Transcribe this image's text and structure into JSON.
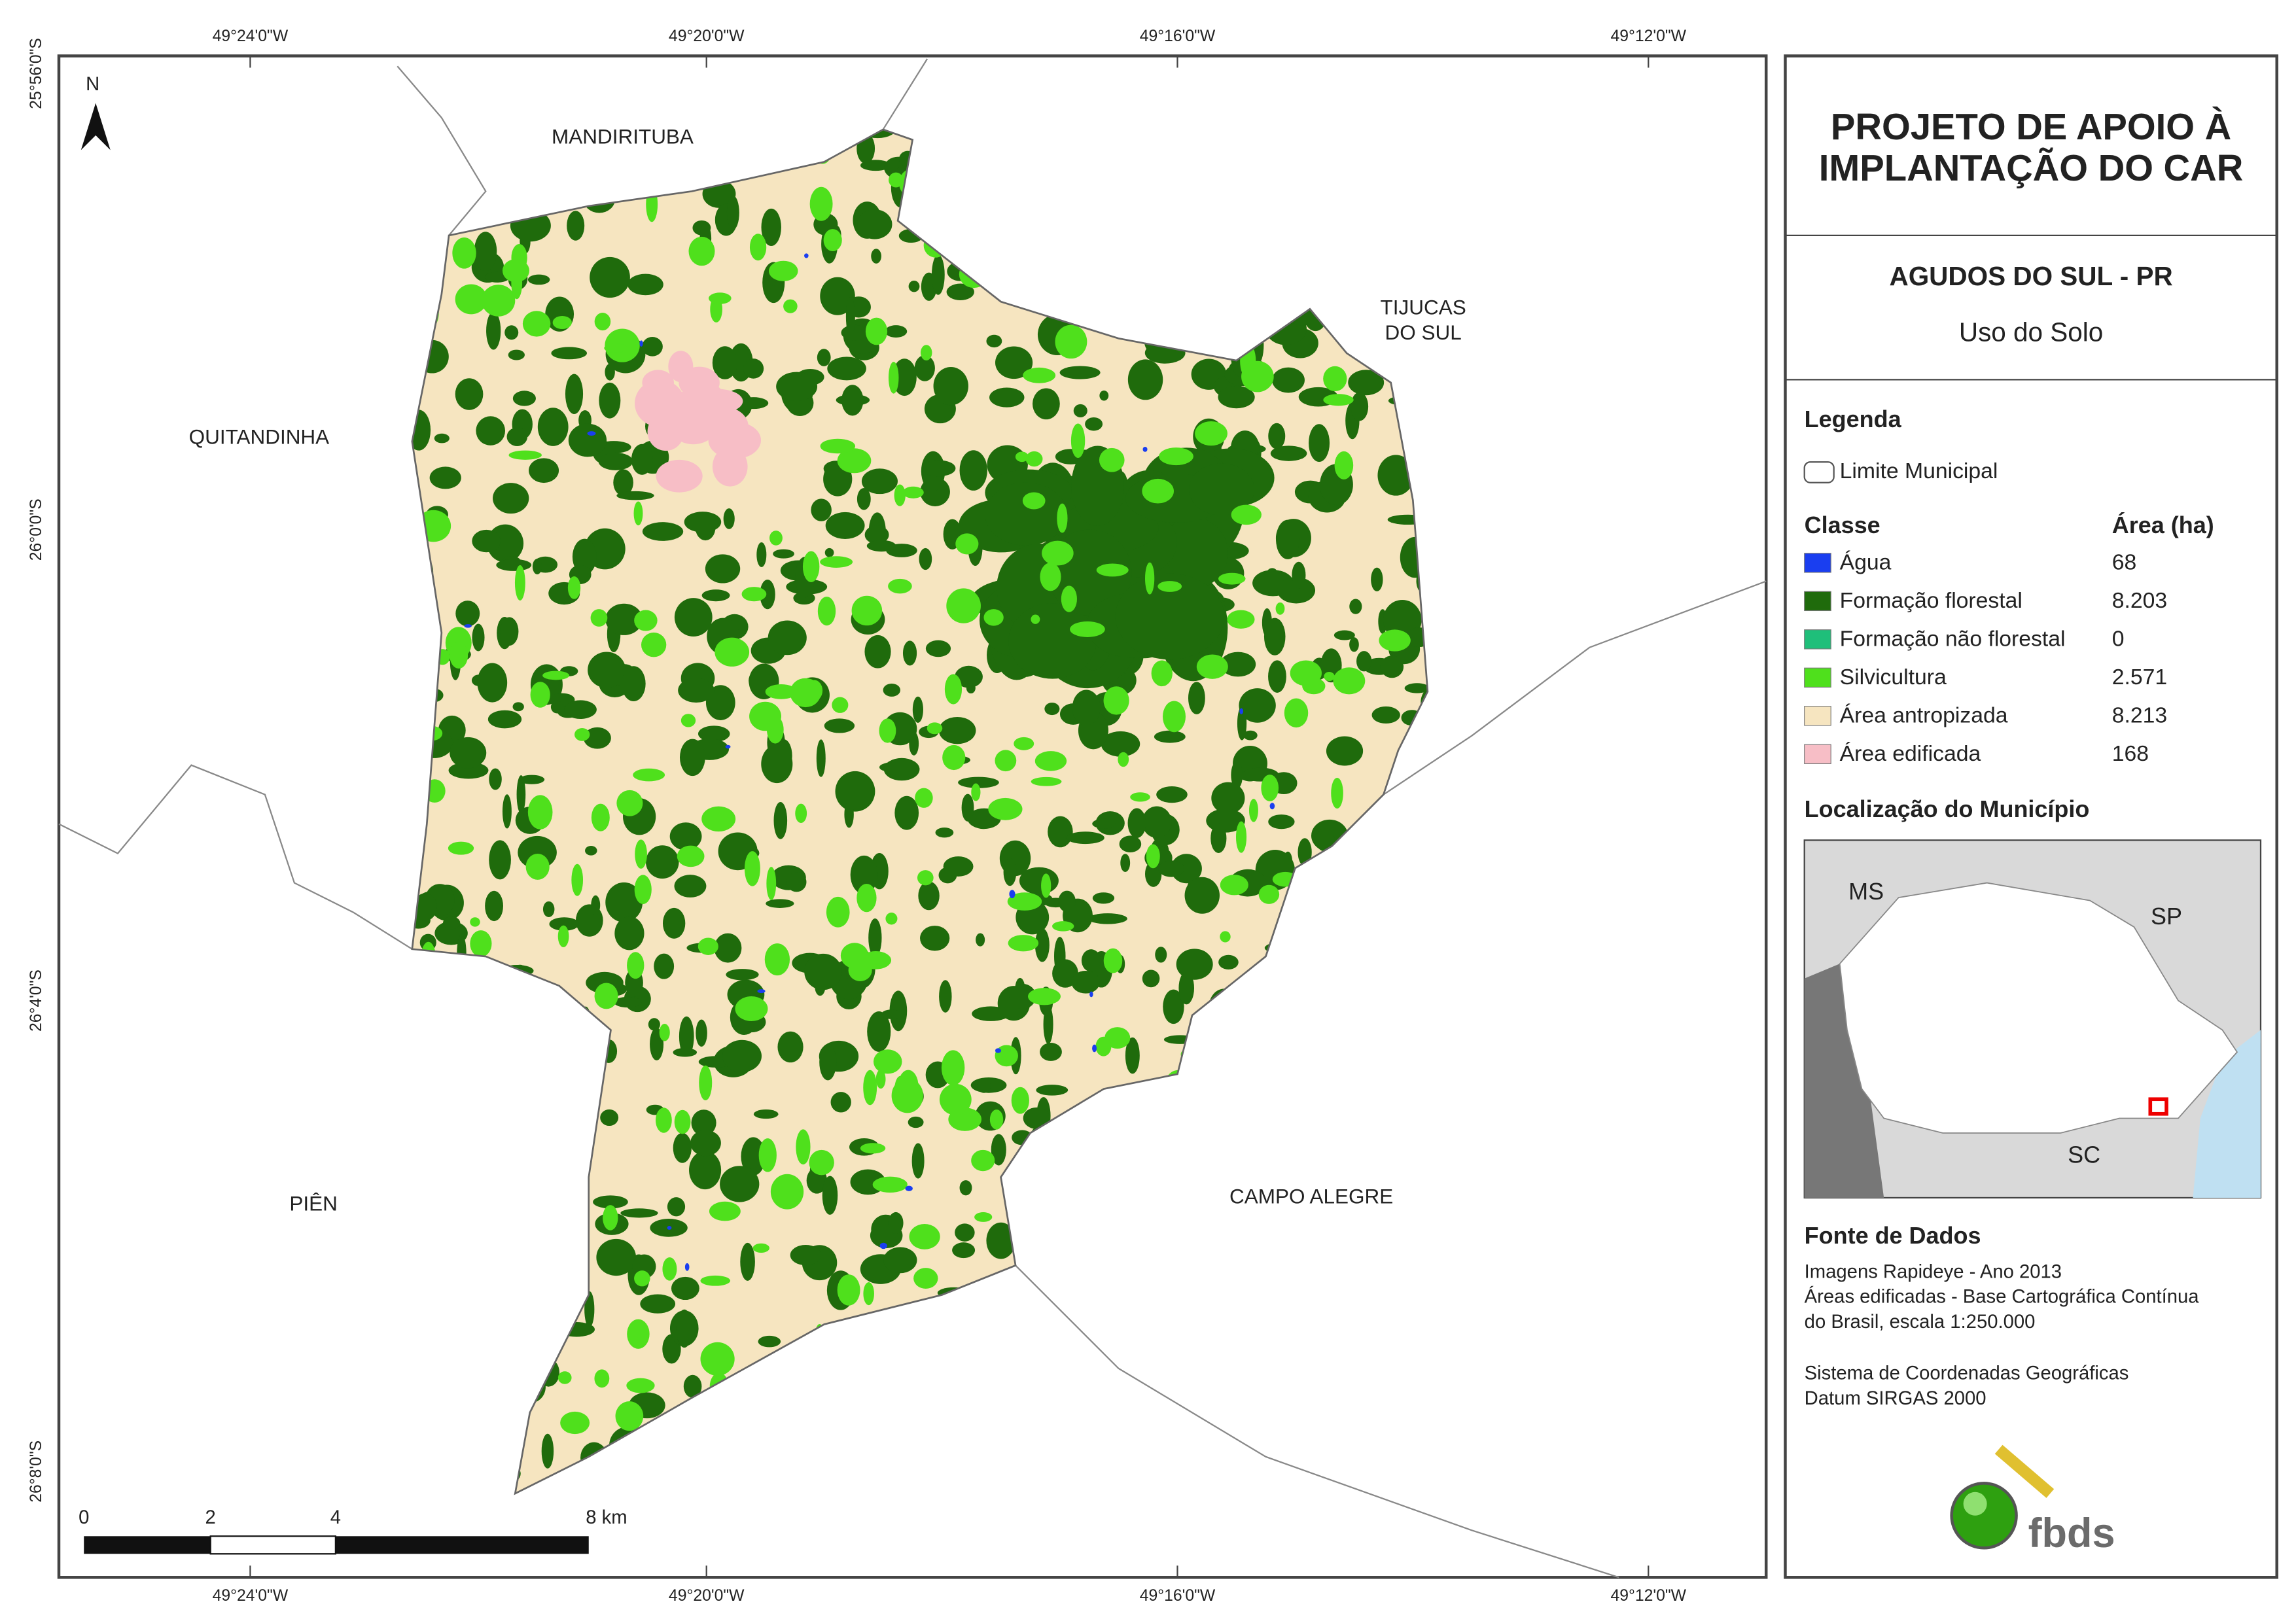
{
  "map": {
    "north": "N",
    "places": [
      {
        "lines": [
          "MANDIRITUBA"
        ]
      },
      {
        "lines": [
          "QUITANDINHA"
        ]
      },
      {
        "lines": [
          "TIJUCAS",
          "DO SUL"
        ]
      },
      {
        "lines": [
          "PIÊN"
        ]
      },
      {
        "lines": [
          "CAMPO ALEGRE"
        ]
      }
    ],
    "top_ticks": [
      "49°24'0\"W",
      "49°20'0\"W",
      "49°16'0\"W",
      "49°12'0\"W"
    ],
    "bottom_ticks": [
      "49°24'0\"W",
      "49°20'0\"W",
      "49°16'0\"W",
      "49°12'0\"W"
    ],
    "left_ticks": [
      "25°56'0\"S",
      "26°0'0\"S",
      "26°4'0\"S",
      "26°8'0\"S"
    ],
    "scale_bar": [
      "0",
      "2",
      "4",
      "8 km"
    ]
  },
  "panel": {
    "title_lines": [
      "PROJETO DE APOIO À",
      "IMPLANTAÇÃO DO CAR"
    ],
    "municipality": "AGUDOS DO SUL - PR",
    "theme": "Uso do Solo",
    "legend_title": "Legenda",
    "boundary_label": "Limite Municipal",
    "class_header": "Classe",
    "area_header": "Área (ha)",
    "classes": [
      {
        "name": "Água",
        "color": "#1a3ef0",
        "area": "68"
      },
      {
        "name": "Formação florestal",
        "color": "#1f6b0c",
        "area": "8.203"
      },
      {
        "name": "Formação não florestal",
        "color": "#1fbf7a",
        "area": "0"
      },
      {
        "name": "Silvicultura",
        "color": "#4fe01c",
        "area": "2.571"
      },
      {
        "name": "Área antropizada",
        "color": "#f6e5c0",
        "area": "8.213"
      },
      {
        "name": "Área edificada",
        "color": "#f7bec6",
        "area": "168"
      }
    ],
    "location_title": "Localização do Município",
    "inset_labels": [
      "MS",
      "SP",
      "SC"
    ],
    "sources_title": "Fonte de Dados",
    "sources_lines": [
      "Imagens Rapideye - Ano 2013",
      "Áreas edificadas - Base Cartográfica Contínua",
      "do Brasil, escala 1:250.000",
      "Sistema de Coordenadas Geográficas",
      "Datum SIRGAS 2000"
    ],
    "logo": "fbds"
  }
}
